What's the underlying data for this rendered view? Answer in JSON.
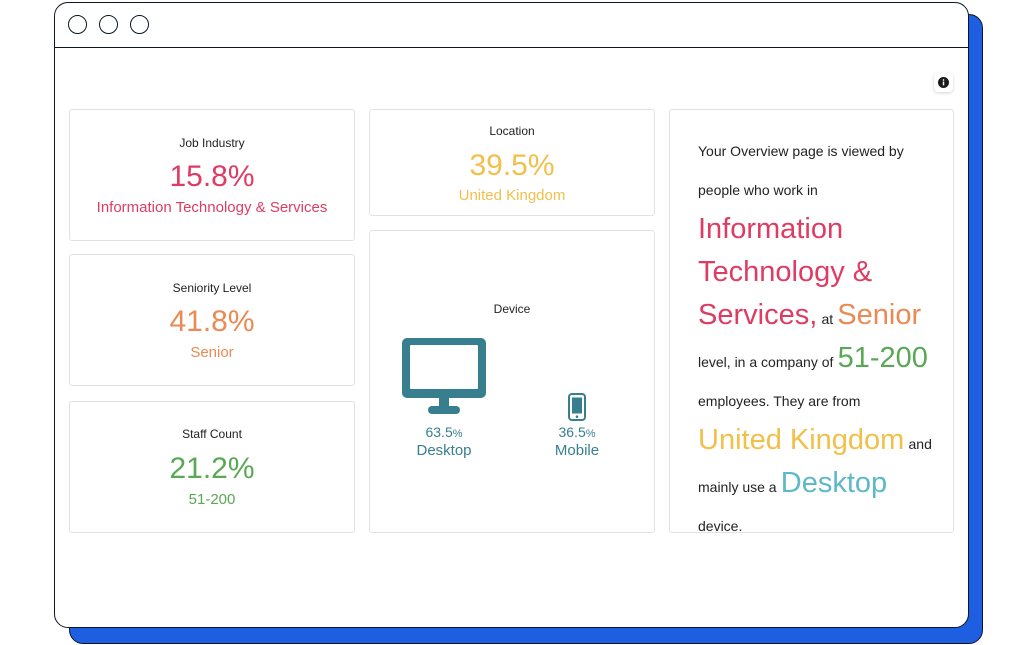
{
  "cards": {
    "job_industry": {
      "label": "Job Industry",
      "value": "15.8%",
      "sub": "Information Technology & Services"
    },
    "seniority": {
      "label": "Seniority Level",
      "value": "41.8%",
      "sub": "Senior"
    },
    "staff_count": {
      "label": "Staff Count",
      "value": "21.2%",
      "sub": "51-200"
    },
    "location": {
      "label": "Location",
      "value": "39.5%",
      "sub": "United Kingdom"
    },
    "device": {
      "label": "Device",
      "desktop": {
        "num": "63.5",
        "unit": "%",
        "label": "Desktop"
      },
      "mobile": {
        "num": "36.5",
        "unit": "%",
        "label": "Mobile"
      }
    }
  },
  "summary": {
    "p1": "Your Overview page is viewed by people who work in",
    "industry": "Information Technology & Services,",
    "p2": "at",
    "seniority": "Senior",
    "p3": "level, in a company of",
    "staff": "51-200",
    "p4": "employees. They are from",
    "location": "United Kingdom",
    "p5": "and mainly use a",
    "device": "Desktop",
    "p6": "device."
  },
  "icons": {
    "info": "info-icon",
    "desktop": "desktop-icon",
    "mobile": "mobile-icon"
  },
  "colors": {
    "industry": "#df3c63",
    "seniority": "#ea8a55",
    "staff": "#5aa855",
    "location": "#f2c04a",
    "device": "#377f8e",
    "device_summary": "#5eb8c8",
    "frame_accent": "#1d5fe0"
  }
}
